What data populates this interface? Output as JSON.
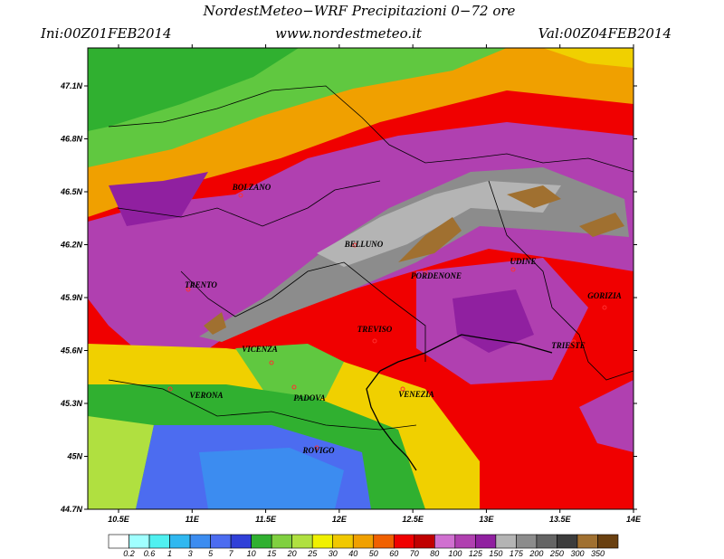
{
  "header": {
    "title": "NordestMeteo−WRF Precipitazioni 0−72 ore",
    "init": "Ini:00Z01FEB2014",
    "website": "www.nordestmeteo.it",
    "valid": "Val:00Z04FEB2014"
  },
  "map": {
    "lat_ticks": [
      {
        "value": 47.1,
        "label": "47.1N"
      },
      {
        "value": 46.8,
        "label": "46.8N"
      },
      {
        "value": 46.5,
        "label": "46.5N"
      },
      {
        "value": 46.2,
        "label": "46.2N"
      },
      {
        "value": 45.9,
        "label": "45.9N"
      },
      {
        "value": 45.6,
        "label": "45.6N"
      },
      {
        "value": 45.3,
        "label": "45.3N"
      },
      {
        "value": 45,
        "label": "45N"
      },
      {
        "value": 44.7,
        "label": "44.7N"
      }
    ],
    "lon_ticks": [
      {
        "value": 10.5,
        "label": "10.5E"
      },
      {
        "value": 11,
        "label": "11E"
      },
      {
        "value": 11.5,
        "label": "11.5E"
      },
      {
        "value": 12,
        "label": "12E"
      },
      {
        "value": 12.5,
        "label": "12.5E"
      },
      {
        "value": 13,
        "label": "13E"
      },
      {
        "value": 13.5,
        "label": "13.5E"
      },
      {
        "value": 14,
        "label": "14E"
      }
    ],
    "cities": [
      "BOLZANO",
      "BELLUNO",
      "UDINE",
      "TRENTO",
      "PORDENONE",
      "GORIZIA",
      "TREVISO",
      "TRIESTE",
      "VICENZA",
      "VERONA",
      "PADOVA",
      "VENEZIA",
      "ROVIGO"
    ]
  },
  "legend": {
    "labels": [
      "0.2",
      "0.6",
      "1",
      "3",
      "5",
      "7",
      "10",
      "15",
      "20",
      "25",
      "30",
      "40",
      "50",
      "60",
      "70",
      "80",
      "100",
      "125",
      "150",
      "175",
      "200",
      "250",
      "300",
      "350"
    ],
    "colors": [
      "#ffffff",
      "#a0ffff",
      "#50f0f0",
      "#30b8f0",
      "#3c8cf0",
      "#4c6cf0",
      "#3040d8",
      "#30b030",
      "#80d040",
      "#b0e040",
      "#f0f000",
      "#f0c800",
      "#f0a000",
      "#f06000",
      "#f00000",
      "#c00000",
      "#d070d0",
      "#b040b0",
      "#9020a0",
      "#b4b4b4",
      "#8c8c8c",
      "#646464",
      "#3c3c3c",
      "#a07030",
      "#6a4010"
    ]
  }
}
